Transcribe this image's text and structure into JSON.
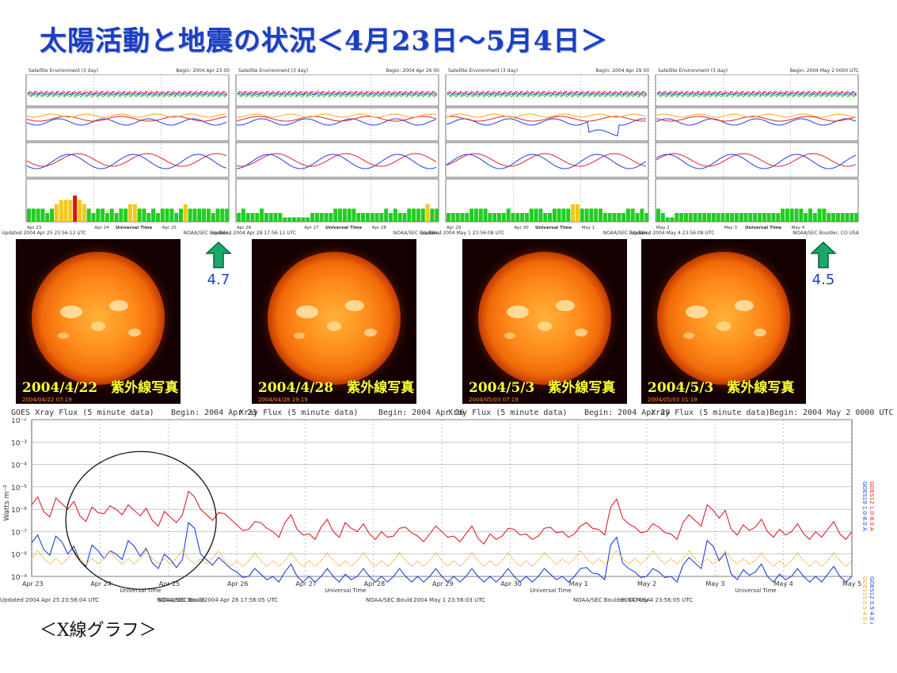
{
  "title": "太陽活動と地震の状況＜4月23日～5月4日＞",
  "caption": "＜X線グラフ＞",
  "colors": {
    "title": "#1d3fbf",
    "goes10": "#e0202a",
    "goes12": "#1f3fe0",
    "minor": "#f5a623",
    "kp_green": "#22cc22",
    "kp_yellow": "#f2c81a",
    "kp_red": "#e01010",
    "quake": "#1f3fd0",
    "arrow": "#1aa86a"
  },
  "satellite_panels": [
    {
      "header_left": "Satellite Environment (3 day)",
      "header_right": "Begin: 2004 Apr 23 00",
      "footer_left": "Updated 2004 Apr 25 23:56:12 UTC",
      "footer_right": "NOAA/SEC Boulder,",
      "xticks": [
        "Apr 23",
        "Apr 24",
        "Apr 25"
      ],
      "xlabel": "Universal Time",
      "kp": [
        3,
        3,
        3,
        3,
        2,
        3,
        4,
        5,
        5,
        5,
        6,
        5,
        4,
        3,
        2,
        3,
        3,
        2,
        3,
        2,
        3,
        3,
        4,
        4,
        3,
        3,
        2,
        3,
        2,
        3,
        3,
        3,
        2,
        3,
        4,
        3,
        3,
        3,
        3,
        3,
        2,
        3,
        3,
        3
      ]
    },
    {
      "header_left": "Satellite Environment (3 day)",
      "header_right": "Begin: 2004 Apr 26 00",
      "footer_left": "Updated 2004 Apr 28 17:56:11 UTC",
      "footer_right": "NOAA/SEC Boulder,",
      "xticks": [
        "Apr 26",
        "Apr 27",
        "Apr 28"
      ],
      "xlabel": "Universal Time",
      "kp": [
        2,
        3,
        2,
        2,
        2,
        3,
        2,
        2,
        2,
        2,
        1,
        1,
        1,
        1,
        1,
        1,
        2,
        2,
        2,
        2,
        2,
        3,
        3,
        3,
        3,
        3,
        2,
        2,
        2,
        2,
        2,
        2,
        3,
        2,
        3,
        2,
        2,
        3,
        3,
        3,
        3,
        4,
        3,
        3
      ]
    },
    {
      "header_left": "Satellite Environment (3 day)",
      "header_right": "Begin: 2004 Apr 29 00",
      "footer_left": "Updated 2004 May 1 23:56:08 UTC",
      "footer_right": "NOAA/SEC Boulder,",
      "xticks": [
        "Apr 29",
        "Apr 30",
        "May 1"
      ],
      "xlabel": "Universal Time",
      "kp": [
        2,
        2,
        2,
        2,
        2,
        3,
        3,
        3,
        3,
        2,
        2,
        2,
        2,
        3,
        2,
        2,
        2,
        2,
        3,
        3,
        3,
        2,
        2,
        3,
        3,
        3,
        3,
        4,
        4,
        3,
        3,
        3,
        3,
        3,
        2,
        2,
        2,
        2,
        2,
        3,
        3,
        2,
        3,
        2
      ]
    },
    {
      "header_left": "Satellite Environment (3 day)",
      "header_right": "Begin: 2004 May 2 0000 UTC",
      "footer_left": "Updated 2004 May 4 23:56:08 UTC",
      "footer_right": "NOAA/SEC Boulder, CO USA",
      "xticks": [
        "May 2",
        "May 3",
        "May 4"
      ],
      "xlabel": "Universal Time",
      "kp": [
        3,
        2,
        1,
        1,
        2,
        2,
        2,
        2,
        2,
        2,
        2,
        2,
        2,
        2,
        2,
        2,
        2,
        2,
        2,
        2,
        2,
        2,
        2,
        2,
        2,
        2,
        2,
        3,
        3,
        3,
        3,
        3,
        2,
        3,
        2,
        3,
        3,
        2,
        2,
        2,
        2,
        2,
        2,
        2
      ]
    }
  ],
  "photos": [
    {
      "label": "2004/4/22　紫外線写真",
      "small": "2004/04/22 07:19"
    },
    {
      "label": "2004/4/28　紫外線写真",
      "small": "2004/04/28 19:19"
    },
    {
      "label": "2004/5/3　紫外線写真",
      "small": "2004/05/03 07:19"
    },
    {
      "label": "2004/5/3　紫外線写真",
      "small": "2004/05/03 01:19"
    }
  ],
  "quake_markers": [
    {
      "text": "4.7"
    },
    {
      "text": "4.5"
    }
  ],
  "xray_segments": [
    {
      "title": "GOES Xray Flux (5 minute data)",
      "begin": "Begin:  2004 Apr 23",
      "footer": "Updated 2004 Apr 25 23:56:04 UTC",
      "footer_right": "NOAA/SEC Bould"
    },
    {
      "title": "Xray Flux (5 minute data)",
      "begin": "Begin:  2004 Apr 26",
      "footer": "2004 Apr 28 17:56:05 UTC",
      "footer_right": "NOAA/SEC Bould"
    },
    {
      "title": "Xray Flux (5 minute data)",
      "begin": "Begin:  2004 Apr 29",
      "footer": "2004 May 1 23:56:03 UTC",
      "footer_right": "NOAA/SEC Bould"
    },
    {
      "title": "Xray Flux (5 minute data)",
      "begin": "Begin:  2004 May 2 0000 UTC",
      "footer": "2004 May 4 23:56:05 UTC",
      "footer_right": "NOAA/SEC Boulder, CO USA"
    }
  ],
  "chart_data": {
    "type": "line",
    "title": "GOES Xray Flux (5 minute data)",
    "ylabel": "Watts m⁻²",
    "xlabel": "Universal Time",
    "y_scale": "log",
    "ylim": [
      1e-09,
      0.01
    ],
    "y_ticks": [
      "10⁻²",
      "10⁻³",
      "10⁻⁴",
      "10⁻⁵",
      "10⁻⁶",
      "10⁻⁷",
      "10⁻⁸",
      "10⁻⁹"
    ],
    "x_ticks": [
      "Apr 23",
      "Apr 24",
      "Apr 25",
      "Apr 26",
      "Apr 27",
      "Apr 28",
      "Apr 29",
      "Apr 30",
      "May 1",
      "May 2",
      "May 3",
      "May 4",
      "May 5"
    ],
    "right_labels": [
      "GOES10 1.0-8.0 A",
      "GOES12 1.0-8.0 A",
      "GOES10 0.5-4.0 A",
      "GOES12 0.5-4.0 A"
    ],
    "series": [
      {
        "name": "GOES12 1.0-8.0 A",
        "color": "#e0202a",
        "values": [
          -5.8,
          -6.1,
          -5.5,
          -6.0,
          -6.3,
          -5.9,
          -6.2,
          -6.0,
          -5.8,
          -6.3,
          -6.5,
          -6.1,
          -6.6,
          -5.2,
          -6.0,
          -6.5,
          -6.2,
          -6.7,
          -6.9,
          -6.6,
          -7.0,
          -6.6,
          -6.9,
          -7.1,
          -6.8,
          -7.0,
          -6.6,
          -7.0,
          -7.1,
          -7.0,
          -7.2,
          -6.8,
          -7.2,
          -7.1,
          -7.0,
          -7.2,
          -7.1,
          -7.3,
          -7.1,
          -7.2,
          -6.9,
          -7.1,
          -7.2,
          -6.8,
          -7.0,
          -7.1,
          -6.6,
          -6.9,
          -5.9,
          -6.4,
          -6.8,
          -7.0,
          -6.8,
          -7.1,
          -6.6,
          -6.5,
          -5.8,
          -6.4,
          -6.9,
          -6.7,
          -6.8,
          -7.0,
          -6.9,
          -7.0,
          -7.1,
          -7.0,
          -6.9,
          -7.1,
          -7.0
        ]
      },
      {
        "name": "GOES12 0.5-4.0 A",
        "color": "#1f3fe0",
        "values": [
          -7.5,
          -7.8,
          -7.2,
          -8.0,
          -8.3,
          -7.6,
          -8.2,
          -8.0,
          -7.4,
          -8.1,
          -8.4,
          -8.0,
          -8.6,
          -6.6,
          -8.0,
          -8.5,
          -8.4,
          -8.8,
          -9.0,
          -8.9,
          -9.0,
          -8.8,
          -9.0,
          -9.0,
          -9.0,
          -9.0,
          -8.9,
          -9.0,
          -9.0,
          -9.0,
          -9.0,
          -9.0,
          -9.0,
          -9.0,
          -9.0,
          -9.0,
          -9.0,
          -9.0,
          -9.0,
          -9.0,
          -9.0,
          -9.0,
          -9.0,
          -8.9,
          -9.0,
          -9.0,
          -8.6,
          -8.9,
          -7.6,
          -8.4,
          -8.8,
          -9.0,
          -8.8,
          -9.0,
          -8.5,
          -8.4,
          -7.4,
          -8.3,
          -8.9,
          -8.7,
          -8.8,
          -9.0,
          -8.9,
          -9.0,
          -9.0,
          -9.0,
          -8.9,
          -9.0,
          -9.0
        ]
      },
      {
        "name": "GOES10 0.5-4.0 A",
        "color": "#f5a623",
        "values": [
          -8.2,
          -8.2,
          -8.2,
          -8.2,
          -8.2,
          -8.2,
          -8.2,
          -8.2,
          -8.2,
          -8.2,
          -8.2,
          -8.2,
          -8.2,
          -8.2,
          -8.2,
          -8.2,
          -8.3,
          -8.3,
          -8.3,
          -8.3,
          -8.3,
          -8.3,
          -8.3,
          -8.3,
          -8.3,
          -8.3,
          -8.3,
          -8.3,
          -8.3,
          -8.3,
          -8.3,
          -8.3,
          -8.3,
          -8.3,
          -8.3,
          -8.3,
          -8.3,
          -8.3,
          -8.3,
          -8.3,
          -8.3,
          -8.3,
          -8.3,
          -8.2,
          -8.2,
          -8.2,
          -8.2,
          -8.2,
          -8.2,
          -8.2,
          -8.2,
          -8.2,
          -8.2,
          -8.2,
          -8.2,
          -8.2,
          -8.2,
          -8.2,
          -8.2,
          -8.2,
          -8.3,
          -8.3,
          -8.3,
          -8.3,
          -8.3,
          -8.3,
          -8.3,
          -8.3,
          -8.3
        ]
      }
    ],
    "annotation": "circle around Apr 23-25 activity"
  }
}
